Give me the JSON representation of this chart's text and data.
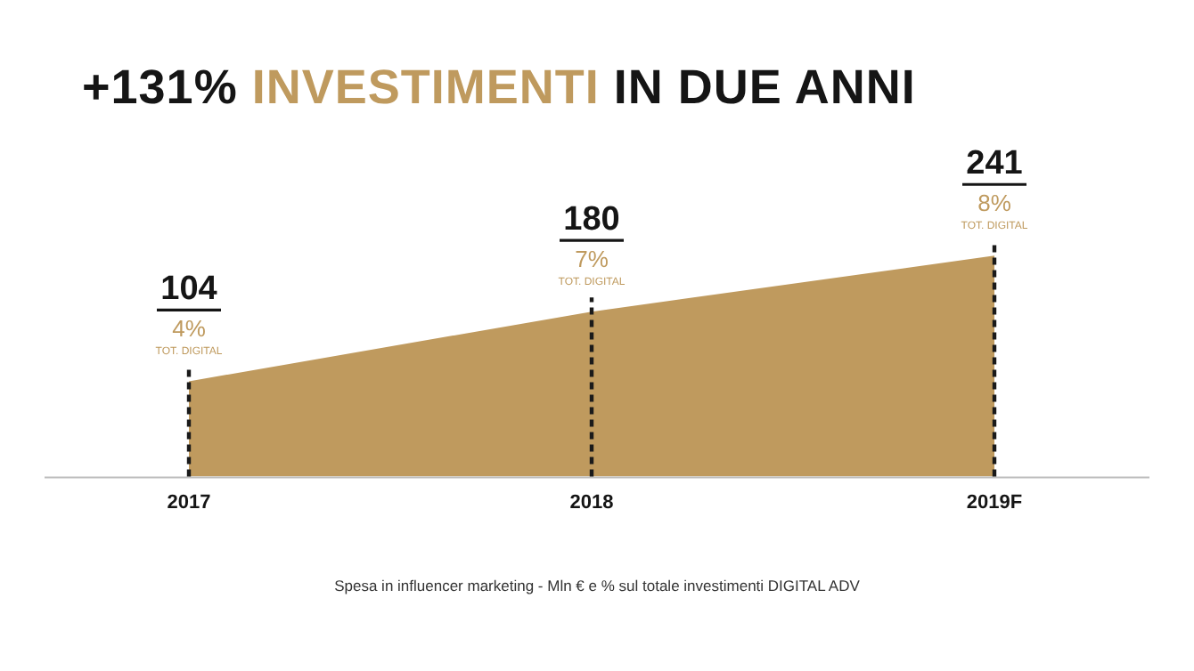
{
  "chart_data": {
    "type": "area",
    "title": "+131% INVESTIMENTI IN DUE ANNI",
    "categories": [
      "2017",
      "2018",
      "2019F"
    ],
    "series": [
      {
        "color": "#bf9a5e",
        "values": [
          104,
          180,
          241
        ]
      }
    ],
    "data_labels": true,
    "legend": false,
    "grid": false,
    "ref_lines": [
      {
        "axis": "x",
        "value": "2017",
        "color": "#1a1a1a",
        "line_style": "dashed"
      },
      {
        "axis": "x",
        "value": "2018",
        "color": "#1a1a1a",
        "line_style": "dashed"
      },
      {
        "axis": "x",
        "value": "2019F",
        "color": "#1a1a1a",
        "line_style": "dashed"
      }
    ],
    "annotations": [
      {
        "text": "4%\nTOT. DIGITAL",
        "x": "2017",
        "y": 104
      },
      {
        "text": "7%\nTOT. DIGITAL",
        "x": "2018",
        "y": 180
      },
      {
        "text": "8%\nTOT. DIGITAL",
        "x": "2019F",
        "y": 241
      },
      "Spesa in influencer marketing - Mln € e % sul totale investimenti DIGITAL ADV"
    ]
  }
}
